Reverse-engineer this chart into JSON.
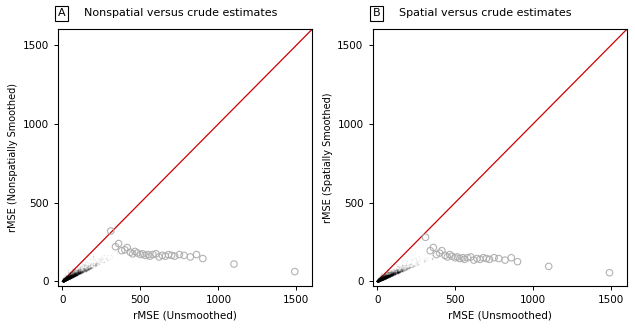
{
  "panel_A_title": "Nonspatial versus crude estimates",
  "panel_B_title": "Spatial versus crude estimates",
  "panel_A_label": "A",
  "panel_B_label": "B",
  "xlabel": "rMSE (Unsmoothed)",
  "ylabel_A": "rMSE (Nonspatially Smoothed)",
  "ylabel_B": "rMSE (Spatially Smoothed)",
  "xlim": [
    -30,
    1600
  ],
  "ylim": [
    -30,
    1600
  ],
  "xticks": [
    0,
    500,
    1000,
    1500
  ],
  "yticks": [
    0,
    500,
    1000,
    1500
  ],
  "diag_color": "#cc0000",
  "bg_color": "#ffffff",
  "dense_color": "#000000",
  "scatter_facecolor": "none",
  "scatter_edgecolor": "#aaaaaa",
  "dense_alpha": 0.08,
  "scatter_alpha": 0.9,
  "n_dense": 3000,
  "seed_A": 42,
  "seed_B": 99,
  "outlier_x_A": [
    310,
    340,
    360,
    380,
    400,
    415,
    435,
    450,
    465,
    480,
    500,
    515,
    530,
    550,
    560,
    580,
    600,
    620,
    640,
    660,
    680,
    700,
    720,
    750,
    780,
    820,
    860,
    900,
    1100,
    1490
  ],
  "outlier_y_A": [
    320,
    220,
    240,
    195,
    200,
    215,
    185,
    175,
    190,
    180,
    170,
    175,
    165,
    170,
    160,
    170,
    175,
    155,
    165,
    160,
    170,
    165,
    160,
    170,
    165,
    155,
    170,
    145,
    110,
    62
  ],
  "outlier_x_B": [
    310,
    340,
    360,
    380,
    400,
    415,
    435,
    450,
    465,
    480,
    500,
    515,
    530,
    550,
    560,
    580,
    600,
    620,
    640,
    660,
    680,
    700,
    720,
    750,
    780,
    820,
    860,
    900,
    1100,
    1490
  ],
  "outlier_y_B": [
    280,
    195,
    215,
    170,
    180,
    195,
    165,
    155,
    170,
    160,
    150,
    155,
    145,
    150,
    140,
    150,
    155,
    135,
    145,
    140,
    150,
    145,
    140,
    150,
    145,
    135,
    150,
    125,
    95,
    55
  ]
}
